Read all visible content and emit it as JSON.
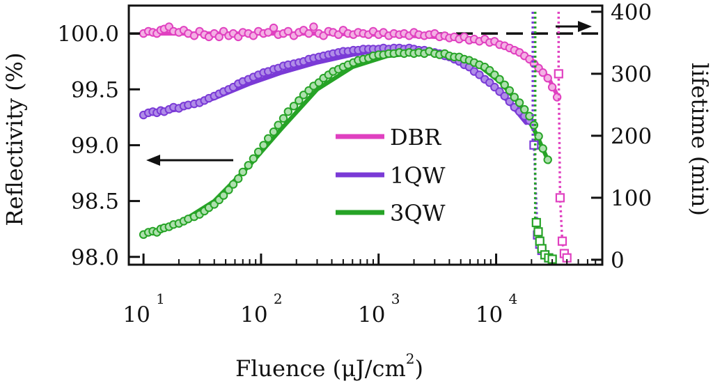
{
  "chart_data": {
    "type": "scatter",
    "title": "",
    "xlabel": "Fluence (μJ/cm²)",
    "xlabel_main": "Fluence (μJ/cm",
    "xlabel_sup": "2",
    "xlabel_close": ")",
    "ylabel_left": "Reflectivity (%)",
    "ylabel_right": "lifetime (min)",
    "x_scale": "log",
    "xlim": [
      7.5,
      80000
    ],
    "ylim_left": [
      97.93,
      100.25
    ],
    "ylim_right": [
      -8,
      410
    ],
    "x_ticks": [
      {
        "base": "10",
        "exp": "1",
        "value": 10
      },
      {
        "base": "10",
        "exp": "2",
        "value": 100
      },
      {
        "base": "10",
        "exp": "3",
        "value": 1000
      },
      {
        "base": "10",
        "exp": "4",
        "value": 10000
      }
    ],
    "y_left_ticks": [
      "98.0",
      "98.5",
      "99.0",
      "99.5",
      "100.0"
    ],
    "y_left_tick_values": [
      98.0,
      98.5,
      99.0,
      99.5,
      100.0
    ],
    "y_right_ticks": [
      "0",
      "100",
      "200",
      "300",
      "400"
    ],
    "y_right_tick_values": [
      0,
      100,
      200,
      300,
      400
    ],
    "reference_line_left": 100.0,
    "legend": [
      {
        "label": "DBR",
        "color": "#e040c0"
      },
      {
        "label": "1QW",
        "color": "#7a3ad6"
      },
      {
        "label": "3QW",
        "color": "#26a326"
      }
    ],
    "series": [
      {
        "name": "DBR",
        "color": "#e040c0",
        "fill": "#f4b0e4",
        "reflectivity": {
          "x": [
            10,
            11,
            12,
            13,
            14,
            15,
            16.5,
            18,
            20,
            22,
            24,
            27,
            30,
            33,
            36,
            40,
            44,
            48,
            53,
            58,
            64,
            70,
            78,
            86,
            95,
            105,
            115,
            128,
            140,
            155,
            170,
            190,
            210,
            230,
            255,
            280,
            310,
            340,
            375,
            410,
            455,
            500,
            550,
            610,
            670,
            740,
            820,
            900,
            1000,
            1100,
            1220,
            1350,
            1500,
            1650,
            1820,
            2000,
            2200,
            2450,
            2700,
            3000,
            3300,
            3650,
            4000,
            4400,
            4850,
            5350,
            5900,
            6500,
            7200,
            8000,
            8800,
            9700,
            10700,
            11800,
            13000,
            14300,
            15800,
            17400,
            19200,
            21000,
            23000,
            25000,
            27500,
            30000,
            33000
          ],
          "y": [
            100.0,
            100.02,
            100.01,
            100.0,
            100.03,
            100.04,
            100.06,
            100.02,
            100.01,
            100.03,
            100.0,
            99.98,
            100.02,
            99.99,
            99.97,
            100.0,
            99.97,
            100.02,
            99.98,
            100.0,
            99.97,
            100.01,
            100.0,
            99.98,
            100.02,
            100.0,
            100.01,
            100.05,
            99.99,
            100.0,
            100.02,
            99.98,
            100.01,
            100.03,
            100.0,
            100.06,
            100.0,
            99.98,
            100.02,
            100.01,
            99.99,
            100.03,
            100.0,
            99.99,
            100.01,
            100.0,
            99.99,
            100.02,
            99.99,
            100.01,
            99.98,
            100.0,
            99.99,
            100.0,
            99.98,
            100.01,
            99.99,
            99.98,
            99.99,
            100.0,
            99.97,
            99.98,
            99.96,
            99.97,
            99.95,
            99.97,
            99.94,
            99.95,
            99.93,
            99.95,
            99.92,
            99.93,
            99.9,
            99.89,
            99.87,
            99.85,
            99.83,
            99.8,
            99.77,
            99.73,
            99.69,
            99.65,
            99.6,
            99.52,
            99.43
          ],
          "fit_x": [
            10,
            30,
            100,
            300,
            1000,
            3000,
            8000,
            15000,
            22000,
            28000,
            33000
          ],
          "fit_y": [
            100.0,
            100.0,
            100.0,
            100.0,
            99.99,
            99.97,
            99.94,
            99.86,
            99.73,
            99.6,
            99.45
          ]
        },
        "lifetime": {
          "x": [
            34000,
            35000,
            36500,
            38000,
            40000
          ],
          "y": [
            300,
            100,
            30,
            10,
            3
          ],
          "drop_x": 34000
        }
      },
      {
        "name": "1QW",
        "color": "#7a3ad6",
        "fill": "#b08ce8",
        "reflectivity": {
          "x": [
            10,
            11,
            12,
            13,
            14,
            15,
            16.5,
            18,
            20,
            22,
            24,
            27,
            30,
            33,
            36,
            40,
            44,
            48,
            53,
            58,
            64,
            70,
            78,
            86,
            95,
            105,
            115,
            128,
            140,
            155,
            170,
            190,
            210,
            230,
            255,
            280,
            310,
            340,
            375,
            410,
            455,
            500,
            550,
            610,
            670,
            740,
            820,
            900,
            1000,
            1100,
            1220,
            1350,
            1500,
            1650,
            1820,
            2000,
            2200,
            2450,
            2700,
            3000,
            3300,
            3650,
            4000,
            4400,
            4850,
            5350,
            5900,
            6500,
            7200,
            8000,
            8800,
            9700,
            10700,
            11800,
            13000,
            14300,
            15800,
            17400,
            19200
          ],
          "y": [
            99.27,
            99.29,
            99.3,
            99.29,
            99.31,
            99.3,
            99.32,
            99.34,
            99.33,
            99.35,
            99.36,
            99.37,
            99.38,
            99.4,
            99.42,
            99.44,
            99.46,
            99.48,
            99.5,
            99.52,
            99.55,
            99.57,
            99.59,
            99.61,
            99.63,
            99.65,
            99.66,
            99.68,
            99.69,
            99.71,
            99.72,
            99.73,
            99.74,
            99.75,
            99.77,
            99.78,
            99.79,
            99.8,
            99.81,
            99.82,
            99.83,
            99.84,
            99.84,
            99.85,
            99.85,
            99.86,
            99.86,
            99.86,
            99.86,
            99.87,
            99.86,
            99.87,
            99.87,
            99.86,
            99.87,
            99.86,
            99.85,
            99.85,
            99.84,
            99.83,
            99.82,
            99.8,
            99.79,
            99.77,
            99.75,
            99.72,
            99.7,
            99.66,
            99.63,
            99.59,
            99.56,
            99.52,
            99.48,
            99.44,
            99.39,
            99.34,
            99.3,
            99.26,
            99.22
          ],
          "fit_x": [
            10,
            20,
            40,
            80,
            150,
            300,
            600,
            1000,
            1500,
            2500,
            4000,
            6000,
            9000,
            13000,
            18000
          ],
          "fit_y": [
            99.28,
            99.32,
            99.42,
            99.55,
            99.65,
            99.74,
            99.81,
            99.85,
            99.87,
            99.86,
            99.8,
            99.7,
            99.55,
            99.38,
            99.2
          ]
        },
        "lifetime": {
          "x": [
            21000,
            22500,
            23500,
            24500,
            26000,
            28000,
            30000
          ],
          "y": [
            185,
            40,
            25,
            15,
            8,
            3,
            0
          ],
          "drop_x": 20500
        }
      },
      {
        "name": "3QW",
        "color": "#26a326",
        "fill": "#aee0ae",
        "reflectivity": {
          "x": [
            10,
            11,
            12,
            13,
            14,
            15,
            16.5,
            18,
            20,
            22,
            24,
            27,
            30,
            33,
            36,
            40,
            44,
            48,
            53,
            58,
            64,
            70,
            78,
            86,
            95,
            105,
            115,
            128,
            140,
            155,
            170,
            190,
            210,
            230,
            255,
            280,
            310,
            340,
            375,
            410,
            455,
            500,
            550,
            610,
            670,
            740,
            820,
            900,
            1000,
            1100,
            1220,
            1350,
            1500,
            1650,
            1820,
            2000,
            2200,
            2450,
            2700,
            3000,
            3300,
            3650,
            4000,
            4400,
            4850,
            5350,
            5900,
            6500,
            7200,
            8000,
            8800,
            9700,
            10700,
            11800,
            13000,
            14300,
            15800,
            17400,
            19200,
            21000,
            23000,
            25000,
            27500
          ],
          "y": [
            98.2,
            98.22,
            98.23,
            98.22,
            98.25,
            98.26,
            98.27,
            98.29,
            98.3,
            98.32,
            98.34,
            98.36,
            98.38,
            98.41,
            98.44,
            98.47,
            98.51,
            98.55,
            98.6,
            98.65,
            98.7,
            98.76,
            98.82,
            98.88,
            98.94,
            99.0,
            99.06,
            99.12,
            99.18,
            99.24,
            99.3,
            99.35,
            99.4,
            99.45,
            99.49,
            99.53,
            99.56,
            99.6,
            99.63,
            99.66,
            99.68,
            99.7,
            99.72,
            99.74,
            99.76,
            99.77,
            99.78,
            99.8,
            99.81,
            99.81,
            99.82,
            99.82,
            99.83,
            99.82,
            99.83,
            99.82,
            99.83,
            99.82,
            99.84,
            99.82,
            99.81,
            99.82,
            99.8,
            99.79,
            99.79,
            99.77,
            99.76,
            99.74,
            99.72,
            99.7,
            99.67,
            99.63,
            99.59,
            99.54,
            99.49,
            99.43,
            99.38,
            99.32,
            99.26,
            99.18,
            99.08,
            98.97,
            98.87
          ],
          "fit_x": [
            10,
            20,
            40,
            80,
            150,
            300,
            600,
            1200,
            2500,
            4500,
            7000,
            11000,
            16000,
            22000,
            28000
          ],
          "fit_y": [
            98.2,
            98.3,
            98.5,
            98.82,
            99.15,
            99.5,
            99.7,
            99.8,
            99.83,
            99.8,
            99.72,
            99.56,
            99.36,
            99.1,
            98.85
          ]
        },
        "lifetime": {
          "x": [
            22000,
            22800,
            23500,
            24500,
            26000,
            28000,
            30000
          ],
          "y": [
            60,
            45,
            30,
            18,
            8,
            3,
            1
          ],
          "drop_x": 21500
        }
      }
    ]
  }
}
